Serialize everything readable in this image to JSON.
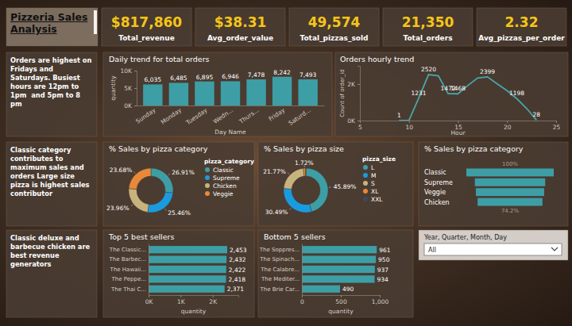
{
  "header": {
    "title": "Pizzeria Sales Analysis"
  },
  "kpis": [
    {
      "value": "$817,860",
      "label": "Total_revenue"
    },
    {
      "value": "$38.31",
      "label": "Avg_order_value"
    },
    {
      "value": "49,574",
      "label": "Total_pizzas_sold"
    },
    {
      "value": "21,350",
      "label": "Total_orders"
    },
    {
      "value": "2.32",
      "label": "Avg_pizzas_per_order"
    }
  ],
  "insights": [
    "Orders are highest on Fridays and Saturdays. Busiest hours are 12pm to 1pm  and 5pm to 8 pm",
    "Classic category contributes to maximum sales and orders Large size pizza is highest sales contributor",
    "Classic deluxe and barbecue chicken are best revenue generators"
  ],
  "slicer": {
    "title": "Year, Quarter, Month, Day",
    "value": "All"
  },
  "chart_data": [
    {
      "type": "bar",
      "title": "Daily trend for total orders",
      "categories": [
        "Sunday",
        "Monday",
        "Tuesday",
        "Wedn...",
        "Thurs...",
        "Friday",
        "Saturd..."
      ],
      "values": [
        6035,
        6485,
        6895,
        6946,
        7478,
        8242,
        7493
      ],
      "value_labels": [
        "6,035",
        "6,485",
        "6,895",
        "6,946",
        "7,478",
        "8,242",
        "7,493"
      ],
      "data_labels": true,
      "color": "#3d9ea6",
      "xlabel": "Day Name",
      "ylabel": "quantity",
      "ylim": [
        0,
        10000
      ],
      "yticks": [
        {
          "value": 0,
          "label": "0K"
        },
        {
          "value": 5000,
          "label": "5K"
        },
        {
          "value": 10000,
          "label": "10K"
        }
      ],
      "grid": false
    },
    {
      "type": "line",
      "title": "Orders hourly trend",
      "x": [
        9,
        10,
        11,
        12,
        13,
        14,
        15,
        16,
        17,
        18,
        19,
        20,
        21,
        22,
        23
      ],
      "values": [
        1,
        8,
        1231,
        2520,
        2455,
        1472,
        1468,
        1920,
        2336,
        2399,
        2009,
        1642,
        1198,
        663,
        28
      ],
      "value_labels": [
        "1",
        null,
        "1231",
        "2520",
        null,
        "1472",
        "1468",
        null,
        null,
        "2399",
        null,
        null,
        "1198",
        null,
        "28"
      ],
      "data_labels": true,
      "color": "#4aa5ab",
      "xlabel": "Hour",
      "ylabel": "Count of order_id",
      "xlim": [
        5,
        25
      ],
      "xticks": [
        5,
        10,
        15,
        20,
        25
      ],
      "ylim": [
        0,
        3000
      ],
      "yticks": [
        {
          "value": 0,
          "label": "0K"
        },
        {
          "value": 2000,
          "label": "2K"
        }
      ],
      "grid": false
    },
    {
      "type": "donut",
      "title": "% Sales by pizza category",
      "categories": [
        "Classic",
        "Supreme",
        "Chicken",
        "Veggie"
      ],
      "values": [
        26.91,
        25.46,
        23.96,
        23.68
      ],
      "value_labels": [
        "26.91%",
        "25.46%",
        "23.96%",
        "23.68%"
      ],
      "data_labels": true,
      "colors": [
        "#3d9ea6",
        "#1a9be0",
        "#c8b27e",
        "#e8893a"
      ],
      "legend": "right",
      "legend_title": "pizza_category"
    },
    {
      "type": "donut",
      "title": "% Sales by pizza size",
      "categories": [
        "L",
        "M",
        "S",
        "XL",
        "XXL"
      ],
      "values": [
        45.89,
        30.49,
        21.77,
        1.72,
        0.12
      ],
      "value_labels": [
        "45.89%",
        "30.49%",
        "21.77%",
        "1.72%",
        null
      ],
      "data_labels": true,
      "colors": [
        "#3d9ea6",
        "#1a9be0",
        "#c8b27e",
        "#e8893a",
        "#3e4a5a"
      ],
      "legend": "right",
      "legend_title": "pizza_size"
    },
    {
      "type": "funnel",
      "title": "% Sales by pizza category",
      "categories": [
        "Classic",
        "Supreme",
        "Veggie",
        "Chicken"
      ],
      "values": [
        100,
        80.5,
        78.2,
        74.2
      ],
      "value_labels": [
        "100%",
        null,
        null,
        "74.2%"
      ],
      "data_labels": true,
      "color": "#3d9ea6",
      "orientation": "horizontal",
      "xlim": [
        0,
        100
      ]
    },
    {
      "type": "bar",
      "orientation": "horizontal",
      "title": "Top 5 best sellers",
      "categories": [
        "The Classic...",
        "The Barbec...",
        "The Hawaii...",
        "The Peppe...",
        "The Thai C..."
      ],
      "values": [
        2453,
        2432,
        2422,
        2418,
        2371
      ],
      "value_labels": [
        "2,453",
        "2,432",
        "2,422",
        "2,418",
        "2,371"
      ],
      "data_labels": true,
      "color": "#3d9ea6",
      "xlabel": "quantity",
      "xlim": [
        0,
        2800
      ],
      "xticks": [
        {
          "value": 0,
          "label": "0K"
        },
        {
          "value": 1000,
          "label": "1K"
        },
        {
          "value": 2000,
          "label": "2K"
        }
      ],
      "grid": false
    },
    {
      "type": "bar",
      "orientation": "horizontal",
      "title": "Bottom 5 sellers",
      "categories": [
        "The Soppres...",
        "The Spinach...",
        "The Calabre...",
        "The Mediter...",
        "The Brie Car..."
      ],
      "values": [
        961,
        950,
        937,
        934,
        490
      ],
      "data_labels": true,
      "color": "#3d9ea6",
      "xlabel": "quantity",
      "xlim": [
        0,
        1000
      ],
      "xticks": [
        0,
        500,
        {
          "value": 1000,
          "label": "1,000"
        }
      ],
      "grid": false
    }
  ]
}
